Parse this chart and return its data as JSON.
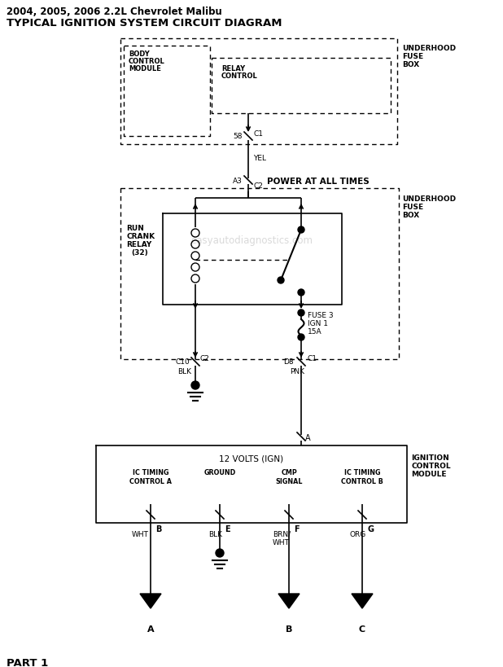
{
  "title_line1": "2004, 2005, 2006 2.2L Chevrolet Malibu",
  "title_line2": "TYPICAL IGNITION SYSTEM CIRCUIT DIAGRAM",
  "watermark": "easyautodiagnostics.com",
  "bg_color": "#ffffff",
  "line_color": "#000000",
  "part_label": "PART 1",
  "fig_width": 6.18,
  "fig_height": 8.2
}
